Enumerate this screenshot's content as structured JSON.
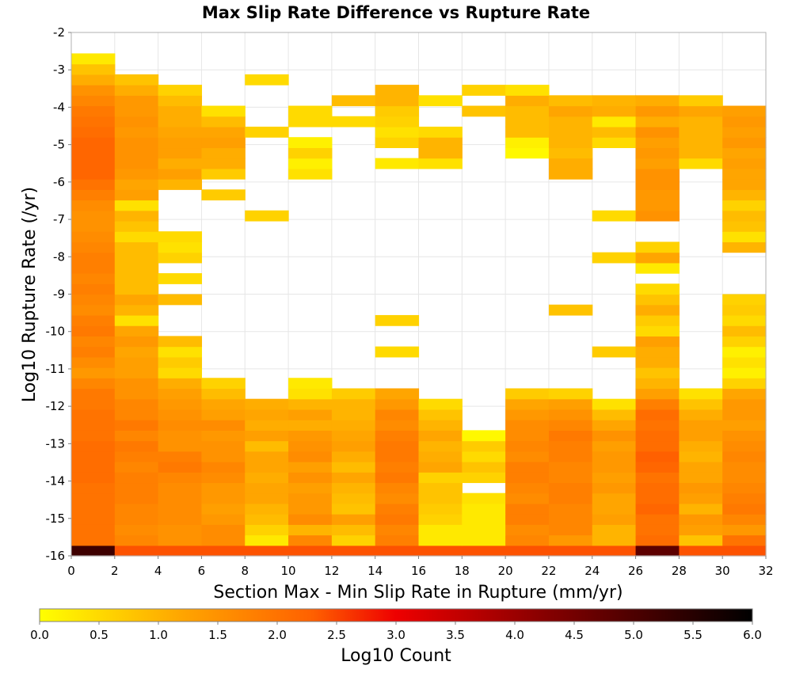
{
  "chart_data": {
    "type": "heatmap",
    "title": "Max Slip Rate Difference vs Rupture Rate",
    "xlabel": "Section Max - Min Slip Rate in Rupture (mm/yr)",
    "ylabel": "Log10 Rupture Rate (/yr)",
    "xlim": [
      0,
      32
    ],
    "ylim": [
      -16,
      -2
    ],
    "x_ticks": [
      "0",
      "2",
      "4",
      "6",
      "8",
      "10",
      "12",
      "14",
      "16",
      "18",
      "20",
      "22",
      "24",
      "26",
      "28",
      "30",
      "32"
    ],
    "y_ticks": [
      "-2",
      "-3",
      "-4",
      "-5",
      "-6",
      "-7",
      "-8",
      "-9",
      "-10",
      "-11",
      "-12",
      "-13",
      "-14",
      "-15",
      "-16"
    ],
    "x_bin_width": 2,
    "y_bin_height": 0.28,
    "x_bin_starts": [
      0,
      2,
      4,
      6,
      8,
      10,
      12,
      14,
      16,
      18,
      20,
      22,
      24,
      26,
      28,
      30
    ],
    "y_bin_bottoms": [
      -16.0,
      -15.72,
      -15.44,
      -15.16,
      -14.88,
      -14.6,
      -14.32,
      -14.04,
      -13.76,
      -13.48,
      -13.2,
      -12.92,
      -12.64,
      -12.36,
      -12.08,
      -11.8,
      -11.52,
      -11.24,
      -10.96,
      -10.68,
      -10.4,
      -10.12,
      -9.84,
      -9.56,
      -9.28,
      -9.0,
      -8.72,
      -8.44,
      -8.16,
      -7.88,
      -7.6,
      -7.32,
      -7.04,
      -6.76,
      -6.48,
      -6.2,
      -5.92,
      -5.64,
      -5.36,
      -5.08,
      -4.8,
      -4.52,
      -4.24,
      -3.96,
      -3.68,
      -3.4,
      -3.12,
      -2.84
    ],
    "values": [
      [
        5.2,
        2.4,
        2.4,
        2.4,
        2.4,
        2.4,
        2.4,
        2.4,
        2.4,
        2.4,
        2.4,
        2.4,
        2.4,
        4.8,
        2.4,
        2.4
      ],
      [
        2.0,
        1.7,
        1.5,
        1.6,
        0.3,
        1.7,
        0.6,
        1.8,
        0.3,
        0.3,
        1.7,
        1.4,
        1.0,
        2.1,
        0.8,
        2.0
      ],
      [
        2.0,
        1.6,
        1.5,
        1.6,
        0.6,
        1.0,
        0.9,
        1.7,
        0.3,
        0.3,
        1.6,
        1.7,
        1.0,
        2.0,
        1.3,
        1.4
      ],
      [
        2.0,
        1.7,
        1.6,
        1.4,
        0.9,
        1.6,
        1.3,
        1.9,
        0.6,
        0.3,
        1.8,
        1.7,
        1.3,
        2.0,
        1.4,
        1.7
      ],
      [
        2.0,
        1.7,
        1.6,
        1.3,
        1.0,
        1.4,
        0.8,
        1.8,
        0.7,
        0.3,
        1.8,
        1.7,
        1.2,
        2.2,
        1.0,
        1.9
      ],
      [
        2.0,
        1.8,
        1.6,
        1.4,
        1.2,
        1.4,
        0.9,
        1.6,
        0.8,
        0.4,
        1.6,
        1.8,
        1.2,
        2.1,
        1.3,
        1.8
      ],
      [
        2.0,
        1.8,
        1.6,
        1.4,
        1.2,
        1.3,
        1.0,
        1.7,
        0.8,
        null,
        1.7,
        1.8,
        1.4,
        2.1,
        1.4,
        1.7
      ],
      [
        2.1,
        1.8,
        1.7,
        1.6,
        1.1,
        1.5,
        1.2,
        1.9,
        0.6,
        0.6,
        1.8,
        1.7,
        1.3,
        2.0,
        1.2,
        1.6
      ],
      [
        2.1,
        1.7,
        1.9,
        1.7,
        1.2,
        1.3,
        0.9,
        1.8,
        1.2,
        0.8,
        1.8,
        1.7,
        1.4,
        2.2,
        1.2,
        1.6
      ],
      [
        2.1,
        1.8,
        1.8,
        1.5,
        1.2,
        1.6,
        1.1,
        1.9,
        1.1,
        0.5,
        1.6,
        1.8,
        1.4,
        2.3,
        1.0,
        1.7
      ],
      [
        2.1,
        1.9,
        1.5,
        1.5,
        0.9,
        1.5,
        1.3,
        1.9,
        1.0,
        0.7,
        1.7,
        1.8,
        1.3,
        2.1,
        1.1,
        1.6
      ],
      [
        2.0,
        1.7,
        1.5,
        1.4,
        1.3,
        1.4,
        1.2,
        1.8,
        1.2,
        0.1,
        1.6,
        1.9,
        1.5,
        2.1,
        1.3,
        1.5
      ],
      [
        2.0,
        1.9,
        1.6,
        1.6,
        1.1,
        1.1,
        1.1,
        1.6,
        1.0,
        null,
        1.6,
        1.7,
        1.2,
        2.0,
        1.3,
        1.3
      ],
      [
        2.0,
        1.7,
        1.5,
        1.3,
        1.2,
        1.3,
        1.0,
        1.7,
        0.8,
        null,
        1.4,
        1.5,
        0.9,
        2.1,
        1.1,
        1.4
      ],
      [
        1.9,
        1.7,
        1.4,
        1.2,
        1.1,
        1.0,
        1.0,
        1.4,
        0.5,
        null,
        1.2,
        1.3,
        0.4,
        1.8,
        0.8,
        1.4
      ],
      [
        1.9,
        1.5,
        1.3,
        0.9,
        null,
        0.4,
        0.7,
        1.2,
        null,
        null,
        0.7,
        0.6,
        null,
        1.3,
        0.4,
        1.2
      ],
      [
        1.7,
        1.5,
        1.1,
        0.6,
        null,
        0.3,
        null,
        null,
        null,
        null,
        null,
        null,
        null,
        1.0,
        null,
        0.6
      ],
      [
        1.4,
        1.3,
        0.5,
        null,
        null,
        null,
        null,
        null,
        null,
        null,
        null,
        null,
        null,
        0.8,
        null,
        0.2
      ],
      [
        1.6,
        1.3,
        0.7,
        null,
        null,
        null,
        null,
        null,
        null,
        null,
        null,
        null,
        null,
        1.1,
        null,
        0.4
      ],
      [
        1.8,
        1.2,
        0.4,
        null,
        null,
        null,
        null,
        0.5,
        null,
        null,
        null,
        null,
        0.7,
        1.1,
        null,
        0.2
      ],
      [
        1.7,
        1.4,
        0.9,
        null,
        null,
        null,
        null,
        null,
        null,
        null,
        null,
        null,
        null,
        1.3,
        null,
        0.6
      ],
      [
        1.9,
        1.2,
        null,
        null,
        null,
        null,
        null,
        null,
        null,
        null,
        null,
        null,
        null,
        0.5,
        null,
        0.9
      ],
      [
        1.8,
        0.4,
        null,
        null,
        null,
        null,
        null,
        0.6,
        null,
        null,
        null,
        null,
        null,
        0.7,
        null,
        0.5
      ],
      [
        1.6,
        1.0,
        null,
        null,
        null,
        null,
        null,
        null,
        null,
        null,
        null,
        0.8,
        null,
        1.1,
        null,
        0.7
      ],
      [
        1.7,
        1.2,
        0.9,
        null,
        null,
        null,
        null,
        null,
        null,
        null,
        null,
        null,
        null,
        0.8,
        null,
        0.6
      ],
      [
        1.8,
        0.9,
        null,
        null,
        null,
        null,
        null,
        null,
        null,
        null,
        null,
        null,
        null,
        0.5,
        null,
        null
      ],
      [
        1.7,
        0.9,
        0.5,
        null,
        null,
        null,
        null,
        null,
        null,
        null,
        null,
        null,
        null,
        null,
        null,
        null
      ],
      [
        1.8,
        0.9,
        null,
        null,
        null,
        null,
        null,
        null,
        null,
        null,
        null,
        null,
        null,
        0.3,
        null,
        null
      ],
      [
        1.8,
        0.9,
        0.6,
        null,
        null,
        null,
        null,
        null,
        null,
        null,
        null,
        null,
        0.6,
        1.2,
        null,
        null
      ],
      [
        1.7,
        0.9,
        0.4,
        null,
        null,
        null,
        null,
        null,
        null,
        null,
        null,
        null,
        null,
        0.6,
        null,
        1.0
      ],
      [
        1.6,
        0.5,
        0.5,
        null,
        null,
        null,
        null,
        null,
        null,
        null,
        null,
        null,
        null,
        null,
        null,
        0.4
      ],
      [
        1.5,
        0.8,
        null,
        null,
        null,
        null,
        null,
        null,
        null,
        null,
        null,
        null,
        null,
        null,
        null,
        0.8
      ],
      [
        1.5,
        1.0,
        null,
        null,
        0.6,
        null,
        null,
        null,
        null,
        null,
        null,
        null,
        0.5,
        1.5,
        null,
        0.9
      ],
      [
        1.6,
        0.4,
        null,
        null,
        null,
        null,
        null,
        null,
        null,
        null,
        null,
        null,
        null,
        1.4,
        null,
        0.6
      ],
      [
        1.8,
        1.3,
        null,
        0.7,
        null,
        null,
        null,
        null,
        null,
        null,
        null,
        null,
        null,
        1.4,
        null,
        1.0
      ],
      [
        2.0,
        1.2,
        1.0,
        null,
        null,
        null,
        null,
        null,
        null,
        null,
        null,
        null,
        null,
        1.5,
        null,
        1.2
      ],
      [
        2.2,
        1.4,
        1.3,
        0.7,
        null,
        0.4,
        null,
        null,
        null,
        null,
        null,
        1.1,
        null,
        1.5,
        null,
        1.2
      ],
      [
        2.2,
        1.5,
        1.1,
        1.1,
        null,
        0.2,
        null,
        0.3,
        0.4,
        null,
        null,
        1.1,
        null,
        1.3,
        0.5,
        1.3
      ],
      [
        2.2,
        1.5,
        1.3,
        1.1,
        null,
        0.6,
        null,
        null,
        1.0,
        null,
        0.1,
        0.9,
        null,
        1.4,
        1.0,
        1.2
      ],
      [
        2.2,
        1.5,
        1.3,
        1.3,
        null,
        0.2,
        null,
        0.6,
        1.0,
        null,
        0.2,
        1.0,
        0.5,
        1.3,
        1.0,
        1.4
      ],
      [
        2.1,
        1.4,
        1.2,
        1.2,
        0.6,
        null,
        null,
        0.4,
        0.5,
        null,
        0.9,
        1.0,
        0.9,
        1.5,
        1.0,
        1.3
      ],
      [
        2.0,
        1.5,
        1.1,
        0.9,
        null,
        0.5,
        0.5,
        0.6,
        null,
        null,
        0.9,
        1.0,
        0.3,
        1.1,
        1.0,
        1.4
      ],
      [
        1.9,
        1.4,
        1.1,
        0.4,
        null,
        0.5,
        null,
        0.7,
        null,
        0.8,
        0.9,
        1.2,
        1.1,
        1.4,
        1.2,
        1.3
      ],
      [
        1.7,
        1.4,
        0.9,
        null,
        null,
        null,
        0.9,
        1.0,
        0.4,
        null,
        1.1,
        0.9,
        1.0,
        1.1,
        0.7,
        null
      ],
      [
        1.5,
        1.1,
        0.6,
        null,
        null,
        null,
        null,
        1.0,
        null,
        0.6,
        0.4,
        null,
        null,
        null,
        null,
        null
      ],
      [
        1.1,
        0.8,
        null,
        null,
        0.5,
        null,
        null,
        null,
        null,
        null,
        null,
        null,
        null,
        null,
        null,
        null
      ],
      [
        0.8,
        null,
        null,
        null,
        null,
        null,
        null,
        null,
        null,
        null,
        null,
        null,
        null,
        null,
        null,
        null
      ],
      [
        0.3,
        null,
        null,
        null,
        null,
        null,
        null,
        null,
        null,
        null,
        null,
        null,
        null,
        null,
        null,
        null
      ]
    ],
    "colorbar": {
      "label": "Log10 Count",
      "range": [
        0,
        6
      ],
      "ticks": [
        "0.0",
        "0.5",
        "1.0",
        "1.5",
        "2.0",
        "2.5",
        "3.0",
        "3.5",
        "4.0",
        "4.5",
        "5.0",
        "5.5",
        "6.0"
      ],
      "colors": [
        "#ffff00",
        "#ffa500",
        "#ff6000",
        "#ee0000",
        "#8b0000",
        "#000000"
      ],
      "stops": [
        0,
        1.2,
        2.3,
        3.0,
        4.2,
        6.0
      ]
    },
    "grid": true
  }
}
